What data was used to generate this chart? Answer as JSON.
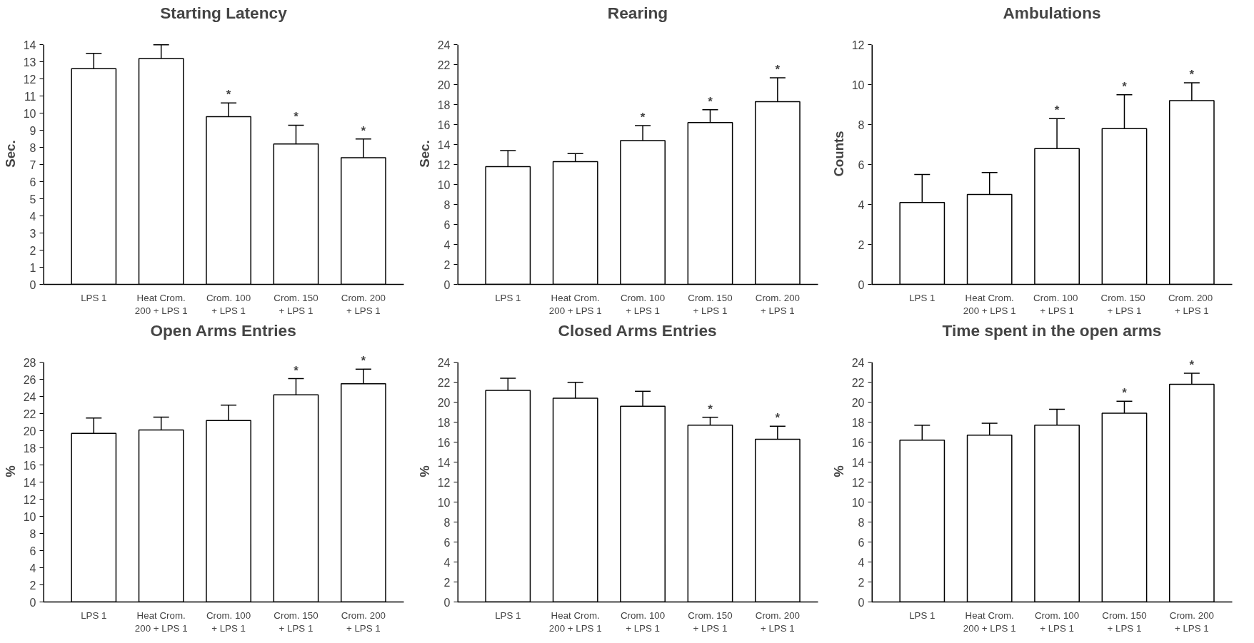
{
  "chart_data": [
    {
      "type": "bar",
      "title": "Starting Latency",
      "ylabel": "Sec.",
      "categories": [
        "LPS 1",
        "Heat Crom.\n200 + LPS 1",
        "Crom. 100\n+ LPS 1",
        "Crom. 150\n+ LPS 1",
        "Crom. 200\n+ LPS 1"
      ],
      "values": [
        12.6,
        13.2,
        9.8,
        8.2,
        7.4
      ],
      "errors": [
        [
          12.6,
          13.5
        ],
        [
          13.2,
          14.0
        ],
        [
          9.8,
          10.6
        ],
        [
          8.2,
          9.3
        ],
        [
          7.4,
          8.5
        ]
      ],
      "color": "#ffffff",
      "ylim": [
        0,
        14
      ],
      "yticks": [
        0,
        1,
        2,
        3,
        4,
        5,
        6,
        7,
        8,
        9,
        10,
        11,
        12,
        13,
        14
      ],
      "grid": false,
      "annotations": [
        {
          "text": "*",
          "x": "Crom. 100\n+ LPS 1",
          "y": 10.6
        },
        {
          "text": "*",
          "x": "Crom. 150\n+ LPS 1",
          "y": 9.3
        },
        {
          "text": "*",
          "x": "Crom. 200\n+ LPS 1",
          "y": 8.5
        }
      ]
    },
    {
      "type": "bar",
      "title": "Rearing",
      "ylabel": "Sec.",
      "categories": [
        "LPS 1",
        "Heat Crom.\n200 + LPS 1",
        "Crom. 100\n+ LPS 1",
        "Crom. 150\n+ LPS 1",
        "Crom. 200\n+ LPS 1"
      ],
      "values": [
        11.8,
        12.3,
        14.4,
        16.2,
        18.3
      ],
      "errors": [
        [
          11.8,
          13.4
        ],
        [
          12.3,
          13.1
        ],
        [
          14.4,
          15.9
        ],
        [
          16.2,
          17.5
        ],
        [
          18.3,
          20.7
        ]
      ],
      "color": "#ffffff",
      "ylim": [
        0,
        24
      ],
      "yticks": [
        0,
        2,
        4,
        6,
        8,
        10,
        12,
        14,
        16,
        18,
        20,
        22,
        24
      ],
      "grid": false,
      "annotations": [
        {
          "text": "*",
          "x": "Crom. 100\n+ LPS 1",
          "y": 15.9
        },
        {
          "text": "*",
          "x": "Crom. 150\n+ LPS 1",
          "y": 17.5
        },
        {
          "text": "*",
          "x": "Crom. 200\n+ LPS 1",
          "y": 20.7
        }
      ]
    },
    {
      "type": "bar",
      "title": "Ambulations",
      "ylabel": "Counts",
      "categories": [
        "LPS 1",
        "Heat Crom.\n200 + LPS 1",
        "Crom.  100\n+ LPS 1",
        "Crom.  150\n+ LPS 1",
        "Crom.  200\n+ LPS 1"
      ],
      "values": [
        4.1,
        4.5,
        6.8,
        7.8,
        9.2
      ],
      "errors": [
        [
          4.1,
          5.5
        ],
        [
          4.5,
          5.6
        ],
        [
          6.8,
          8.3
        ],
        [
          7.8,
          9.5
        ],
        [
          9.2,
          10.1
        ]
      ],
      "color": "#ffffff",
      "ylim": [
        0,
        12
      ],
      "yticks": [
        0,
        2,
        4,
        6,
        8,
        10,
        12
      ],
      "grid": false,
      "annotations": [
        {
          "text": "*",
          "x": "Crom.  100\n+ LPS 1",
          "y": 8.3
        },
        {
          "text": "*",
          "x": "Crom.  150\n+ LPS 1",
          "y": 9.5
        },
        {
          "text": "*",
          "x": "Crom.  200\n+ LPS 1",
          "y": 10.1
        }
      ]
    },
    {
      "type": "bar",
      "title": "Open Arms Entries",
      "ylabel": "%",
      "categories": [
        "LPS 1",
        "Heat Crom.\n200 + LPS 1",
        "Crom. 100\n+ LPS 1",
        "Crom. 150\n+ LPS 1",
        "Crom. 200\n+ LPS 1"
      ],
      "values": [
        19.7,
        20.1,
        21.2,
        24.2,
        25.5
      ],
      "errors": [
        [
          19.7,
          21.5
        ],
        [
          20.1,
          21.6
        ],
        [
          21.2,
          23.0
        ],
        [
          24.2,
          26.1
        ],
        [
          25.5,
          27.2
        ]
      ],
      "color": "#ffffff",
      "ylim": [
        0,
        28
      ],
      "yticks": [
        0,
        2,
        4,
        6,
        8,
        10,
        12,
        14,
        16,
        18,
        20,
        22,
        24,
        26,
        28
      ],
      "grid": false,
      "annotations": [
        {
          "text": "*",
          "x": "Crom. 150\n+ LPS 1",
          "y": 26.1
        },
        {
          "text": "*",
          "x": "Crom. 200\n+ LPS 1",
          "y": 27.2
        }
      ]
    },
    {
      "type": "bar",
      "title": "Closed Arms Entries",
      "ylabel": "%",
      "categories": [
        "LPS 1",
        "Heat Crom.\n200 + LPS 1",
        "Crom. 100\n+ LPS 1",
        "Crom. 150\n+ LPS 1",
        "Crom. 200\n+ LPS 1"
      ],
      "values": [
        21.2,
        20.4,
        19.6,
        17.7,
        16.3
      ],
      "errors": [
        [
          21.2,
          22.4
        ],
        [
          20.4,
          22.0
        ],
        [
          19.6,
          21.1
        ],
        [
          17.7,
          18.5
        ],
        [
          16.3,
          17.6
        ]
      ],
      "color": "#ffffff",
      "ylim": [
        0,
        24
      ],
      "yticks": [
        0,
        2,
        4,
        6,
        8,
        10,
        12,
        14,
        16,
        18,
        20,
        22,
        24
      ],
      "grid": false,
      "annotations": [
        {
          "text": "*",
          "x": "Crom. 150\n+ LPS 1",
          "y": 18.5
        },
        {
          "text": "*",
          "x": "Crom. 200\n+ LPS 1",
          "y": 17.6
        }
      ]
    },
    {
      "type": "bar",
      "title": "Time spent in the open arms",
      "ylabel": "%",
      "categories": [
        "LPS 1",
        "Heat Crom.\n200 + LPS 1",
        "Crom. 100\n+ LPS 1",
        "Crom. 150\n+ LPS 1",
        "Crom. 200\n+ LPS 1"
      ],
      "values": [
        16.2,
        16.7,
        17.7,
        18.9,
        21.8
      ],
      "errors": [
        [
          16.2,
          17.7
        ],
        [
          16.7,
          17.9
        ],
        [
          17.7,
          19.3
        ],
        [
          18.9,
          20.1
        ],
        [
          21.8,
          22.9
        ]
      ],
      "color": "#ffffff",
      "ylim": [
        0,
        24
      ],
      "yticks": [
        0,
        2,
        4,
        6,
        8,
        10,
        12,
        14,
        16,
        18,
        20,
        22,
        24
      ],
      "grid": false,
      "annotations": [
        {
          "text": "*",
          "x": "Crom. 150\n+ LPS 1",
          "y": 20.1
        },
        {
          "text": "*",
          "x": "Crom. 200\n+ LPS 1",
          "y": 22.9
        }
      ]
    }
  ]
}
